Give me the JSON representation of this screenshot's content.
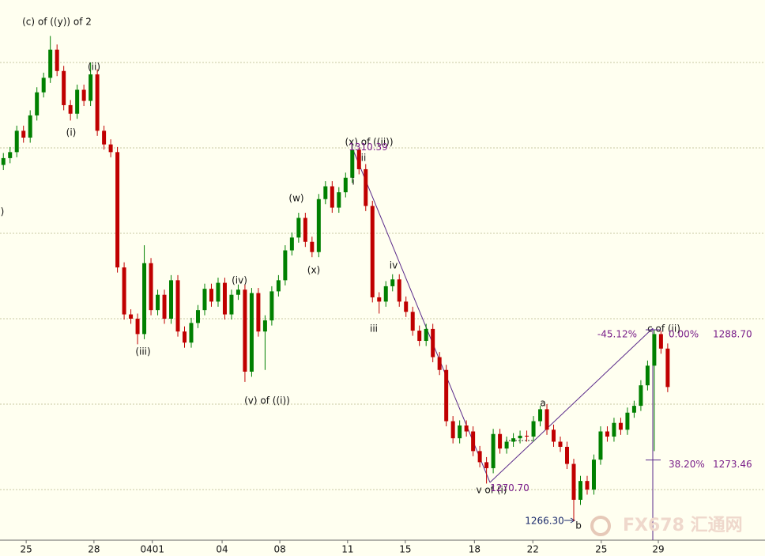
{
  "chart_data": {
    "type": "candlestick",
    "ylim": [
      1264.07,
      1327.31
    ],
    "yticks": [
      1270,
      1280,
      1290,
      1300,
      1310,
      1320
    ],
    "grid": true,
    "xlim": [
      -0.5,
      113.5
    ],
    "xticks": [
      {
        "value": 3.4,
        "label": "25"
      },
      {
        "value": 13.5,
        "label": "28"
      },
      {
        "value": 22.2,
        "label": "0401"
      },
      {
        "value": 32.6,
        "label": "04"
      },
      {
        "value": 41.2,
        "label": "08"
      },
      {
        "value": 51.3,
        "label": "11"
      },
      {
        "value": 59.9,
        "label": "15"
      },
      {
        "value": 70.2,
        "label": "18"
      },
      {
        "value": 78.9,
        "label": "22"
      },
      {
        "value": 89.1,
        "label": "25"
      },
      {
        "value": 97.6,
        "label": "29"
      }
    ],
    "up_color": "#008000",
    "down_color": "#c00000",
    "ohlc": [
      [
        1308.0,
        1309.4,
        1307.4,
        1308.8
      ],
      [
        1308.8,
        1310.1,
        1308.2,
        1309.5
      ],
      [
        1309.5,
        1312.6,
        1308.9,
        1312.0
      ],
      [
        1312.0,
        1312.6,
        1310.6,
        1311.2
      ],
      [
        1311.2,
        1314.4,
        1310.6,
        1313.8
      ],
      [
        1313.8,
        1317.1,
        1313.2,
        1316.5
      ],
      [
        1316.5,
        1318.8,
        1315.9,
        1318.2
      ],
      [
        1318.2,
        1323.1,
        1317.6,
        1321.5
      ],
      [
        1321.5,
        1322.1,
        1318.4,
        1319.0
      ],
      [
        1319.0,
        1319.6,
        1314.4,
        1315.0
      ],
      [
        1315.0,
        1315.6,
        1313.2,
        1314.0
      ],
      [
        1314.0,
        1317.4,
        1313.4,
        1316.8
      ],
      [
        1316.8,
        1317.4,
        1314.9,
        1315.5
      ],
      [
        1315.5,
        1320.0,
        1314.9,
        1318.6
      ],
      [
        1318.6,
        1319.2,
        1311.4,
        1312.0
      ],
      [
        1312.0,
        1312.6,
        1309.8,
        1310.4
      ],
      [
        1310.4,
        1311.0,
        1308.9,
        1309.5
      ],
      [
        1309.5,
        1310.1,
        1295.4,
        1296.0
      ],
      [
        1296.0,
        1296.6,
        1289.9,
        1290.5
      ],
      [
        1290.5,
        1291.1,
        1289.4,
        1290.0
      ],
      [
        1290.0,
        1290.6,
        1287.0,
        1288.2
      ],
      [
        1288.2,
        1298.6,
        1287.6,
        1296.5
      ],
      [
        1296.5,
        1297.1,
        1290.4,
        1291.0
      ],
      [
        1291.0,
        1293.4,
        1290.4,
        1292.8
      ],
      [
        1292.8,
        1293.4,
        1289.4,
        1290.0
      ],
      [
        1290.0,
        1295.1,
        1289.4,
        1294.5
      ],
      [
        1294.5,
        1295.1,
        1287.9,
        1288.5
      ],
      [
        1288.5,
        1289.1,
        1286.6,
        1287.2
      ],
      [
        1287.2,
        1290.1,
        1286.6,
        1289.5
      ],
      [
        1289.5,
        1291.6,
        1288.9,
        1291.0
      ],
      [
        1291.0,
        1294.1,
        1290.4,
        1293.5
      ],
      [
        1293.5,
        1294.1,
        1291.4,
        1292.0
      ],
      [
        1292.0,
        1294.8,
        1291.4,
        1294.2
      ],
      [
        1294.2,
        1294.8,
        1289.9,
        1290.5
      ],
      [
        1290.5,
        1293.4,
        1289.9,
        1292.8
      ],
      [
        1292.8,
        1294.0,
        1292.2,
        1293.4
      ],
      [
        1293.4,
        1294.0,
        1282.6,
        1283.8
      ],
      [
        1283.8,
        1293.6,
        1283.2,
        1293.0
      ],
      [
        1293.0,
        1293.6,
        1287.9,
        1288.5
      ],
      [
        1288.5,
        1290.4,
        1284.0,
        1289.8
      ],
      [
        1289.8,
        1293.8,
        1289.2,
        1293.2
      ],
      [
        1293.2,
        1295.1,
        1292.6,
        1294.5
      ],
      [
        1294.5,
        1298.6,
        1293.9,
        1298.0
      ],
      [
        1298.0,
        1300.1,
        1297.4,
        1299.5
      ],
      [
        1299.5,
        1302.4,
        1298.9,
        1301.8
      ],
      [
        1301.8,
        1302.4,
        1298.4,
        1299.0
      ],
      [
        1299.0,
        1299.6,
        1297.2,
        1297.8
      ],
      [
        1297.8,
        1304.6,
        1297.2,
        1304.0
      ],
      [
        1304.0,
        1306.1,
        1303.4,
        1305.5
      ],
      [
        1305.5,
        1306.1,
        1302.4,
        1303.0
      ],
      [
        1303.0,
        1305.4,
        1302.4,
        1304.8
      ],
      [
        1304.8,
        1307.1,
        1304.2,
        1306.5
      ],
      [
        1306.5,
        1310.39,
        1305.9,
        1309.8
      ],
      [
        1309.8,
        1310.0,
        1306.9,
        1307.5
      ],
      [
        1307.5,
        1308.1,
        1302.6,
        1303.2
      ],
      [
        1303.2,
        1303.8,
        1291.9,
        1292.5
      ],
      [
        1292.5,
        1293.1,
        1290.6,
        1292.0
      ],
      [
        1292.0,
        1294.4,
        1291.4,
        1293.8
      ],
      [
        1293.8,
        1295.2,
        1293.2,
        1294.6
      ],
      [
        1294.6,
        1295.2,
        1291.4,
        1292.0
      ],
      [
        1292.0,
        1292.6,
        1290.2,
        1290.8
      ],
      [
        1290.8,
        1291.4,
        1288.0,
        1288.6
      ],
      [
        1288.6,
        1289.2,
        1286.8,
        1287.4
      ],
      [
        1287.4,
        1289.4,
        1286.8,
        1288.8
      ],
      [
        1288.8,
        1289.4,
        1284.9,
        1285.5
      ],
      [
        1285.5,
        1286.1,
        1283.4,
        1284.0
      ],
      [
        1284.0,
        1284.6,
        1277.4,
        1278.0
      ],
      [
        1278.0,
        1278.6,
        1275.4,
        1276.0
      ],
      [
        1276.0,
        1278.1,
        1275.4,
        1277.5
      ],
      [
        1277.5,
        1278.1,
        1276.2,
        1276.8
      ],
      [
        1276.8,
        1277.4,
        1273.9,
        1274.5
      ],
      [
        1274.5,
        1275.1,
        1272.6,
        1273.2
      ],
      [
        1273.2,
        1273.8,
        1270.7,
        1272.5
      ],
      [
        1272.5,
        1277.1,
        1271.9,
        1276.5
      ],
      [
        1276.5,
        1277.1,
        1274.2,
        1274.8
      ],
      [
        1274.8,
        1276.2,
        1274.2,
        1275.6
      ],
      [
        1275.6,
        1276.6,
        1275.0,
        1276.0
      ],
      [
        1276.0,
        1276.9,
        1275.4,
        1276.3
      ],
      [
        1276.3,
        1276.9,
        1275.6,
        1276.2
      ],
      [
        1276.2,
        1278.6,
        1275.6,
        1278.0
      ],
      [
        1278.0,
        1279.8,
        1277.4,
        1279.4
      ],
      [
        1279.4,
        1280.0,
        1276.4,
        1277.0
      ],
      [
        1277.0,
        1277.6,
        1275.0,
        1275.6
      ],
      [
        1275.6,
        1276.2,
        1274.4,
        1275.0
      ],
      [
        1275.0,
        1275.6,
        1272.4,
        1273.0
      ],
      [
        1273.0,
        1273.6,
        1266.3,
        1268.8
      ],
      [
        1268.8,
        1271.6,
        1268.2,
        1271.0
      ],
      [
        1271.0,
        1271.6,
        1269.4,
        1270.0
      ],
      [
        1270.0,
        1274.1,
        1269.4,
        1273.5
      ],
      [
        1273.5,
        1277.4,
        1272.9,
        1276.8
      ],
      [
        1276.8,
        1277.4,
        1275.6,
        1276.2
      ],
      [
        1276.2,
        1278.4,
        1275.6,
        1277.8
      ],
      [
        1277.8,
        1278.4,
        1276.4,
        1277.0
      ],
      [
        1277.0,
        1279.6,
        1276.4,
        1279.0
      ],
      [
        1279.0,
        1280.4,
        1278.4,
        1279.8
      ],
      [
        1279.8,
        1282.8,
        1279.2,
        1282.2
      ],
      [
        1282.2,
        1285.1,
        1281.6,
        1284.5
      ],
      [
        1284.5,
        1288.7,
        1274.5,
        1288.2
      ],
      [
        1288.2,
        1288.6,
        1285.9,
        1286.5
      ],
      [
        1286.5,
        1287.1,
        1281.4,
        1282.0
      ]
    ],
    "annotations": [
      "(c) of ((y)) of 2",
      "(ii)",
      "(i)",
      ")",
      "(w)",
      "(x)",
      "(iv)",
      "(iii)",
      "(v) of ((i))",
      "(x) of ((ii))",
      "ii",
      "i",
      "iv",
      "iii",
      "v of (i)",
      "a",
      "b",
      "c of (ii)"
    ],
    "price_labels": {
      "values": [
        1310.39,
        1270.7,
        1266.3
      ],
      "value_labels": [
        "1310.39",
        "1270.70",
        "1266.30"
      ]
    },
    "fibonacci": {
      "percents": [
        0,
        38.2
      ],
      "percent_labels": [
        "0.00%",
        "38.20%"
      ],
      "prices": [
        1288.7,
        1273.46
      ],
      "price_labels": [
        "1288.70",
        "1273.46"
      ]
    },
    "retracement": {
      "value": -45.12,
      "label": "-45.12%"
    },
    "watermark": "FX678 汇通网"
  }
}
